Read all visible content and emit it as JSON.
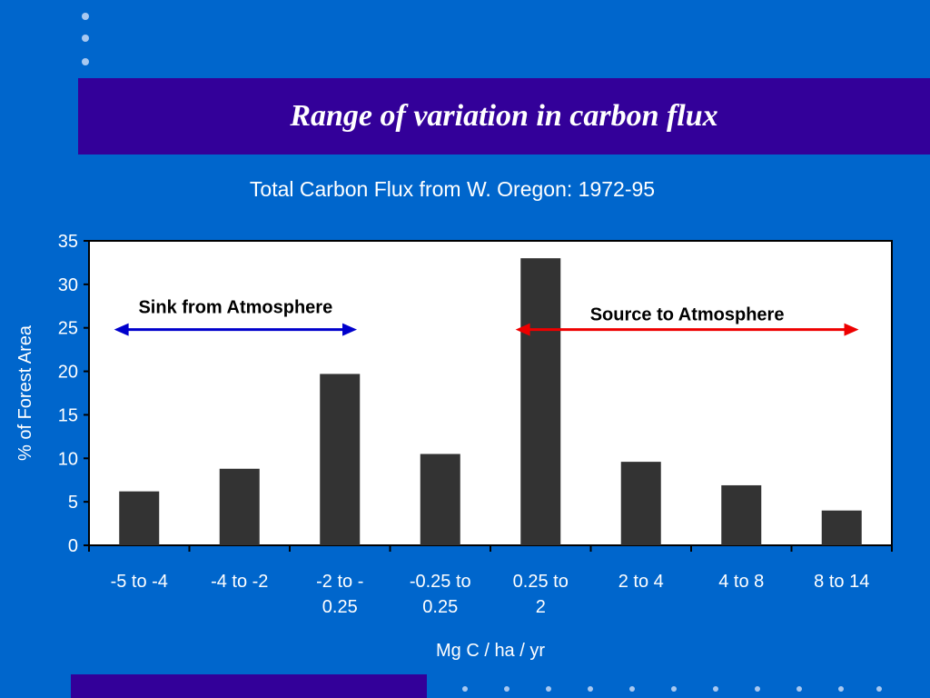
{
  "slide": {
    "title": "Range of variation in carbon flux"
  },
  "colors": {
    "background": "#0066CC",
    "title_band": "#330099",
    "bar": "#333333",
    "sink_arrow": "#0000CC",
    "source_arrow": "#EE0000"
  },
  "chart_data": {
    "type": "bar",
    "title": "Total Carbon Flux from W. Oregon: 1972-95",
    "xlabel": "Mg C / ha / yr",
    "ylabel": "% of Forest Area",
    "ylim": [
      0,
      35
    ],
    "yticks": [
      0,
      5,
      10,
      15,
      20,
      25,
      30,
      35
    ],
    "categories": [
      [
        "-5 to -4"
      ],
      [
        "-4 to -2"
      ],
      [
        "-2 to -",
        "0.25"
      ],
      [
        "-0.25 to",
        "0.25"
      ],
      [
        "0.25 to",
        "2"
      ],
      [
        "2 to 4"
      ],
      [
        "4 to 8"
      ],
      [
        "8 to 14"
      ]
    ],
    "values": [
      6.2,
      8.8,
      19.7,
      10.5,
      33.0,
      9.6,
      6.9,
      4.0
    ],
    "grid": false,
    "annotations": [
      {
        "text": "Sink from Atmosphere",
        "from_category": 0,
        "to_category": 2,
        "y": 24.8,
        "color": "#0000CC"
      },
      {
        "text": "Source to Atmosphere",
        "from_category": 4,
        "to_category": 7,
        "y": 24.8,
        "color": "#EE0000"
      }
    ]
  }
}
